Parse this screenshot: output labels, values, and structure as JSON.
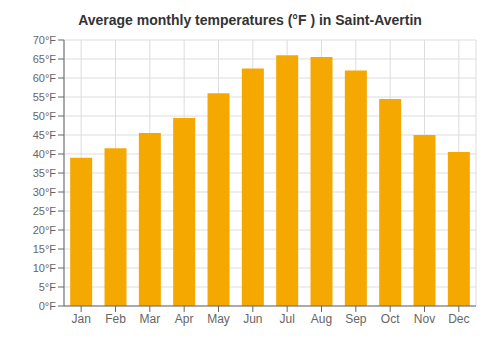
{
  "chart_data": {
    "type": "bar",
    "title": "Average monthly temperatures (°F ) in Saint-Avertin",
    "categories": [
      "Jan",
      "Feb",
      "Mar",
      "Apr",
      "May",
      "Jun",
      "Jul",
      "Aug",
      "Sep",
      "Oct",
      "Nov",
      "Dec"
    ],
    "values": [
      39.0,
      41.5,
      45.5,
      49.5,
      56.0,
      62.5,
      66.0,
      65.5,
      62.0,
      54.5,
      45.0,
      40.5
    ],
    "color": "#F5A800",
    "ylim": [
      0,
      70
    ],
    "yticks": [
      {
        "value": 0,
        "label": "0°F"
      },
      {
        "value": 5,
        "label": "5°F"
      },
      {
        "value": 10,
        "label": "10°F"
      },
      {
        "value": 15,
        "label": "15°F"
      },
      {
        "value": 20,
        "label": "20°F"
      },
      {
        "value": 25,
        "label": "25°F"
      },
      {
        "value": 30,
        "label": "30°F"
      },
      {
        "value": 35,
        "label": "35°F"
      },
      {
        "value": 40,
        "label": "40°F"
      },
      {
        "value": 45,
        "label": "45°F"
      },
      {
        "value": 50,
        "label": "50°F"
      },
      {
        "value": 55,
        "label": "55°F"
      },
      {
        "value": 60,
        "label": "60°F"
      },
      {
        "value": 65,
        "label": "65°F"
      },
      {
        "value": 70,
        "label": "70°F"
      }
    ],
    "grid": true
  }
}
